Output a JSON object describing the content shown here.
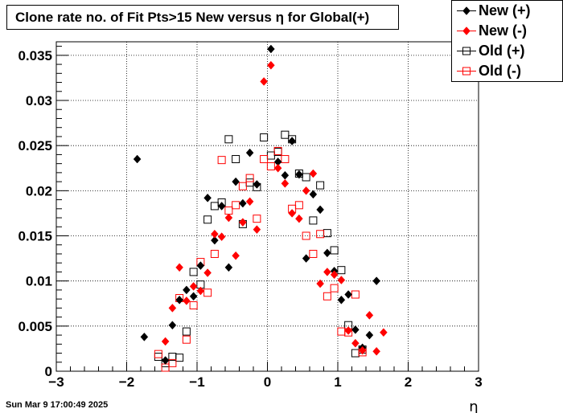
{
  "title": "Clone rate no. of Fit Pts>15 New versus η for Global(+)",
  "timestamp": "Sun Mar  9 17:00:49 2025",
  "colors": {
    "black": "#000000",
    "red": "#ff0000"
  },
  "chart_data": {
    "type": "scatter",
    "xlabel": "η",
    "ylabel": "",
    "xlim": [
      -3,
      3
    ],
    "ylim": [
      0,
      0.0365
    ],
    "grid": true,
    "legend_position": "top-right",
    "x_ticks": [
      "−3",
      "−2",
      "−1",
      "0",
      "1",
      "2",
      "3"
    ],
    "x_tick_values": [
      -3,
      -2,
      -1,
      0,
      1,
      2,
      3
    ],
    "y_ticks": [
      "0",
      "0.005",
      "0.01",
      "0.015",
      "0.02",
      "0.025",
      "0.03",
      "0.035"
    ],
    "y_tick_values": [
      0,
      0.005,
      0.01,
      0.015,
      0.02,
      0.025,
      0.03,
      0.035
    ],
    "series": [
      {
        "name": "New (+)",
        "color": "#000000",
        "marker": "filled-diamond",
        "points": [
          [
            -1.85,
            0.0235
          ],
          [
            -1.75,
            0.0038
          ],
          [
            -1.45,
            0.0012
          ],
          [
            -1.35,
            0.0051
          ],
          [
            -1.25,
            0.0079
          ],
          [
            -1.15,
            0.009
          ],
          [
            -1.05,
            0.0083
          ],
          [
            -0.95,
            0.0117
          ],
          [
            -0.85,
            0.0192
          ],
          [
            -0.75,
            0.0145
          ],
          [
            -0.65,
            0.0183
          ],
          [
            -0.55,
            0.0115
          ],
          [
            -0.45,
            0.021
          ],
          [
            -0.35,
            0.0186
          ],
          [
            -0.25,
            0.0242
          ],
          [
            -0.15,
            0.0207
          ],
          [
            0.05,
            0.0357
          ],
          [
            0.15,
            0.0232
          ],
          [
            0.25,
            0.0217
          ],
          [
            0.35,
            0.0255
          ],
          [
            0.45,
            0.0218
          ],
          [
            0.55,
            0.0125
          ],
          [
            0.65,
            0.0196
          ],
          [
            0.75,
            0.0179
          ],
          [
            0.85,
            0.0131
          ],
          [
            0.95,
            0.0111
          ],
          [
            1.05,
            0.0079
          ],
          [
            1.15,
            0.0085
          ],
          [
            1.25,
            0.0046
          ],
          [
            1.35,
            0.0026
          ],
          [
            1.45,
            0.004
          ],
          [
            1.55,
            0.01
          ]
        ]
      },
      {
        "name": "New (-)",
        "color": "#ff0000",
        "marker": "filled-diamond",
        "points": [
          [
            -1.45,
            0.0033
          ],
          [
            -1.35,
            0.007
          ],
          [
            -1.25,
            0.0115
          ],
          [
            -1.15,
            0.0078
          ],
          [
            -1.05,
            0.0094
          ],
          [
            -0.95,
            0.0089
          ],
          [
            -0.85,
            0.0109
          ],
          [
            -0.75,
            0.0152
          ],
          [
            -0.65,
            0.0149
          ],
          [
            -0.55,
            0.017
          ],
          [
            -0.45,
            0.0128
          ],
          [
            -0.35,
            0.0165
          ],
          [
            -0.25,
            0.0188
          ],
          [
            -0.15,
            0.0157
          ],
          [
            -0.05,
            0.0321
          ],
          [
            0.05,
            0.0339
          ],
          [
            0.15,
            0.0225
          ],
          [
            0.25,
            0.0208
          ],
          [
            0.35,
            0.0175
          ],
          [
            0.45,
            0.0169
          ],
          [
            0.55,
            0.02
          ],
          [
            0.65,
            0.0219
          ],
          [
            0.75,
            0.0097
          ],
          [
            0.85,
            0.011
          ],
          [
            0.95,
            0.0107
          ],
          [
            1.05,
            0.0101
          ],
          [
            1.15,
            0.0045
          ],
          [
            1.25,
            0.0031
          ],
          [
            1.35,
            0.0023
          ],
          [
            1.45,
            0.0062
          ],
          [
            1.55,
            0.0022
          ],
          [
            1.65,
            0.0043
          ]
        ]
      },
      {
        "name": "Old (+)",
        "color": "#000000",
        "marker": "open-square",
        "points": [
          [
            -1.55,
            0.0016
          ],
          [
            -1.45,
            0.0009
          ],
          [
            -1.35,
            0.0016
          ],
          [
            -1.25,
            0.0015
          ],
          [
            -1.15,
            0.0044
          ],
          [
            -1.05,
            0.011
          ],
          [
            -0.95,
            0.0096
          ],
          [
            -0.85,
            0.0168
          ],
          [
            -0.75,
            0.0183
          ],
          [
            -0.65,
            0.0187
          ],
          [
            -0.55,
            0.0257
          ],
          [
            -0.45,
            0.0235
          ],
          [
            -0.35,
            0.0163
          ],
          [
            -0.25,
            0.0209
          ],
          [
            -0.15,
            0.0204
          ],
          [
            -0.05,
            0.0259
          ],
          [
            0.05,
            0.0239
          ],
          [
            0.15,
            0.0243
          ],
          [
            0.25,
            0.0262
          ],
          [
            0.35,
            0.0257
          ],
          [
            0.45,
            0.0219
          ],
          [
            0.55,
            0.0215
          ],
          [
            0.65,
            0.0167
          ],
          [
            0.75,
            0.0206
          ],
          [
            0.85,
            0.0153
          ],
          [
            0.95,
            0.0134
          ],
          [
            1.05,
            0.0112
          ],
          [
            1.15,
            0.0051
          ],
          [
            1.25,
            0.002
          ],
          [
            1.35,
            0.0024
          ]
        ]
      },
      {
        "name": "Old (-)",
        "color": "#ff0000",
        "marker": "open-square",
        "points": [
          [
            -1.55,
            0.0019
          ],
          [
            -1.45,
            0.0004
          ],
          [
            -1.35,
            0.0009
          ],
          [
            -1.25,
            0.0081
          ],
          [
            -1.15,
            0.0035
          ],
          [
            -1.05,
            0.0073
          ],
          [
            -0.95,
            0.0121
          ],
          [
            -0.85,
            0.0087
          ],
          [
            -0.75,
            0.013
          ],
          [
            -0.65,
            0.0234
          ],
          [
            -0.55,
            0.0178
          ],
          [
            -0.45,
            0.0184
          ],
          [
            -0.35,
            0.0205
          ],
          [
            -0.25,
            0.0214
          ],
          [
            -0.15,
            0.0169
          ],
          [
            -0.05,
            0.0235
          ],
          [
            0.05,
            0.0227
          ],
          [
            0.15,
            0.0244
          ],
          [
            0.25,
            0.0235
          ],
          [
            0.35,
            0.018
          ],
          [
            0.45,
            0.0184
          ],
          [
            0.55,
            0.015
          ],
          [
            0.65,
            0.013
          ],
          [
            0.75,
            0.0152
          ],
          [
            0.85,
            0.0083
          ],
          [
            0.95,
            0.0092
          ],
          [
            1.05,
            0.0044
          ],
          [
            1.15,
            0.0043
          ],
          [
            1.25,
            0.0085
          ],
          [
            1.35,
            0.0021
          ]
        ]
      }
    ]
  }
}
